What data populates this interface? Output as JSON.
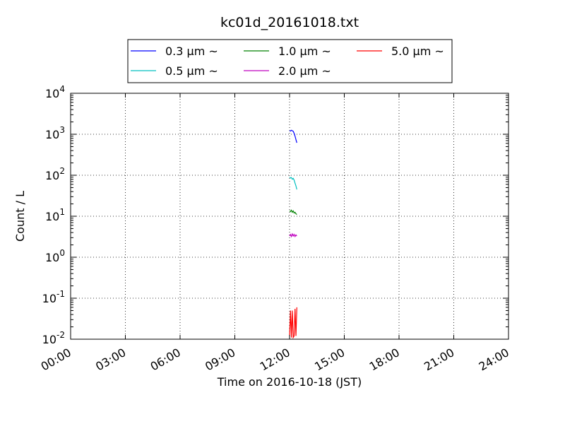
{
  "chart_data": {
    "type": "line",
    "title": "kc01d_20161018.txt",
    "xlabel": "Time on 2016-10-18 (JST)",
    "ylabel": "Count / L",
    "x_unit": "hour of day (JST)",
    "xlim": [
      0,
      24
    ],
    "ylim": [
      0.01,
      10000
    ],
    "yscale": "log",
    "grid": true,
    "legend_placement": "top-center, above plot",
    "legend_ncol": 3,
    "xticks": [
      "00:00",
      "03:00",
      "06:00",
      "09:00",
      "12:00",
      "15:00",
      "18:00",
      "21:00",
      "24:00"
    ],
    "yticks": [
      {
        "value": 0.01,
        "base": "10",
        "exp": "-2"
      },
      {
        "value": 0.1,
        "base": "10",
        "exp": "-1"
      },
      {
        "value": 1,
        "base": "10",
        "exp": "0"
      },
      {
        "value": 10,
        "base": "10",
        "exp": "1"
      },
      {
        "value": 100,
        "base": "10",
        "exp": "2"
      },
      {
        "value": 1000,
        "base": "10",
        "exp": "3"
      },
      {
        "value": 10000,
        "base": "10",
        "exp": "4"
      }
    ],
    "series": [
      {
        "name": "0.3 μm ~",
        "color": "#0000ff",
        "x": [
          12.0,
          12.05,
          12.1,
          12.15,
          12.2,
          12.25,
          12.3,
          12.35,
          12.4
        ],
        "y": [
          1230,
          1200,
          1250,
          1220,
          1180,
          1050,
          900,
          740,
          620
        ]
      },
      {
        "name": "0.5 μm ~",
        "color": "#00bfbf",
        "x": [
          12.0,
          12.05,
          12.1,
          12.15,
          12.2,
          12.25,
          12.3,
          12.35,
          12.4
        ],
        "y": [
          90,
          86,
          88,
          80,
          84,
          76,
          64,
          55,
          45
        ]
      },
      {
        "name": "1.0 μm ~",
        "color": "#008000",
        "x": [
          12.0,
          12.05,
          12.1,
          12.15,
          12.2,
          12.25,
          12.3,
          12.35,
          12.4
        ],
        "y": [
          13.5,
          13,
          14,
          12.5,
          13.5,
          12,
          12.5,
          11.5,
          11
        ]
      },
      {
        "name": "2.0 μm ~",
        "color": "#bf00bf",
        "x": [
          12.0,
          12.05,
          12.1,
          12.15,
          12.2,
          12.25,
          12.3,
          12.35,
          12.4
        ],
        "y": [
          3.3,
          3.6,
          3.2,
          3.7,
          3.3,
          3.6,
          3.2,
          3.5,
          3.3
        ]
      },
      {
        "name": "5.0 μm ~",
        "color": "#ff0000",
        "x": [
          12.0,
          12.05,
          12.1,
          12.15,
          12.2,
          12.25,
          12.3,
          12.35,
          12.4
        ],
        "y": [
          0.012,
          0.05,
          0.011,
          0.05,
          0.011,
          0.012,
          0.055,
          0.012,
          0.06
        ]
      }
    ]
  }
}
